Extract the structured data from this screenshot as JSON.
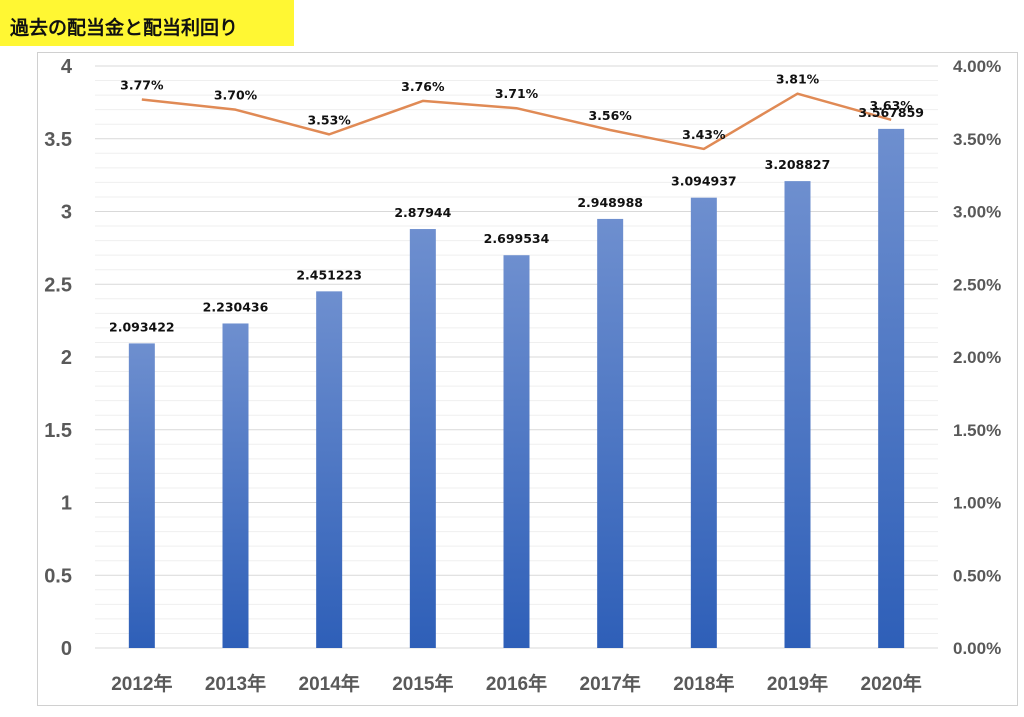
{
  "title": "過去の配当金と配当利回り",
  "colors": {
    "bar": "#4472c4",
    "bar_top": "#6687c9",
    "line": "#e08a55",
    "title_bg": "#fff733"
  },
  "chart_data": {
    "type": "bar",
    "categories": [
      "2012年",
      "2013年",
      "2014年",
      "2015年",
      "2016年",
      "2017年",
      "2018年",
      "2019年",
      "2020年"
    ],
    "series": [
      {
        "type": "bar",
        "axis": "left",
        "values": [
          2.093422,
          2.230436,
          2.451223,
          2.87944,
          2.699534,
          2.948988,
          3.094937,
          3.208827,
          3.567859
        ],
        "labels": [
          "2.093422",
          "2.230436",
          "2.451223",
          "2.87944",
          "2.699534",
          "2.948988",
          "3.094937",
          "3.208827",
          "3.567859"
        ]
      },
      {
        "type": "line",
        "axis": "right",
        "values": [
          3.77,
          3.7,
          3.53,
          3.76,
          3.71,
          3.56,
          3.43,
          3.81,
          3.63
        ],
        "labels": [
          "3.77%",
          "3.70%",
          "3.53%",
          "3.76%",
          "3.71%",
          "3.56%",
          "3.43%",
          "3.81%",
          "3.63%"
        ]
      }
    ],
    "ylim_left": [
      0,
      4
    ],
    "ylim_right": [
      0,
      4
    ],
    "yticks_left": [
      "0",
      "0.5",
      "1",
      "1.5",
      "2",
      "2.5",
      "3",
      "3.5",
      "4"
    ],
    "yticks_right": [
      "0.00%",
      "0.50%",
      "1.00%",
      "1.50%",
      "2.00%",
      "2.50%",
      "3.00%",
      "3.50%",
      "4.00%"
    ],
    "grid": true,
    "legend": "none"
  }
}
